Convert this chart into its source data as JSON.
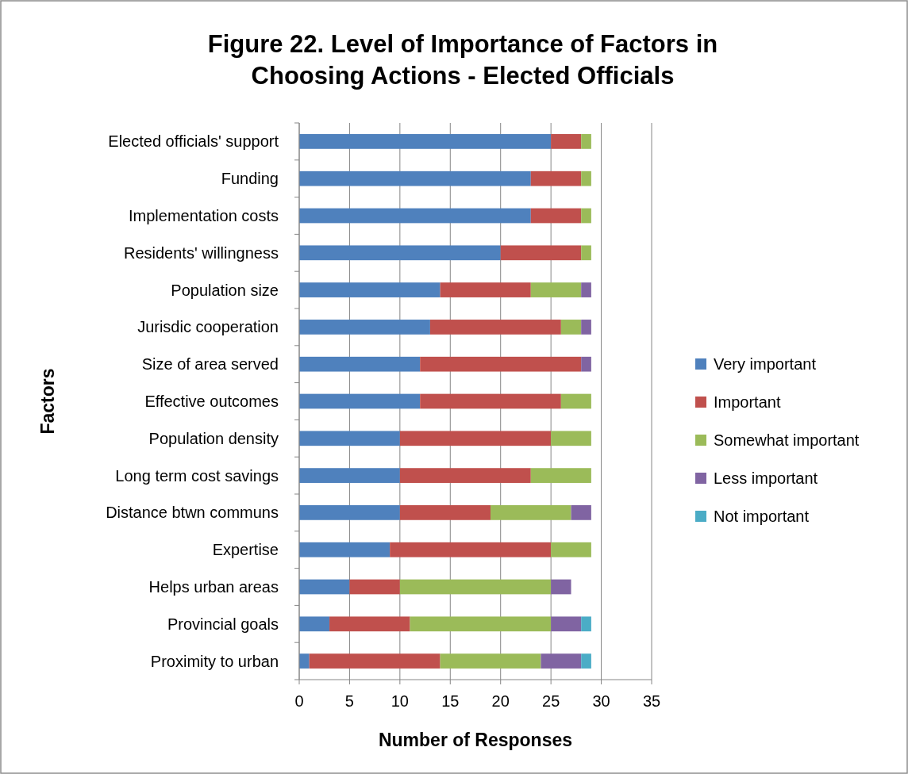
{
  "chart_data": {
    "type": "bar",
    "orientation": "horizontal",
    "stacked": true,
    "title": "Figure 22. Level of Importance of Factors in Choosing Actions - Elected Officials",
    "xlabel": "Number of Responses",
    "ylabel": "Factors",
    "categories": [
      "Elected officials' support",
      "Funding",
      "Implementation costs",
      "Residents' willingness",
      "Population size",
      "Jurisdic cooperation",
      "Size of area served",
      "Effective outcomes",
      "Population density",
      "Long term cost savings",
      "Distance btwn communs",
      "Expertise",
      "Helps urban areas",
      "Provincial goals",
      "Proximity to urban"
    ],
    "series": [
      {
        "name": "Very important",
        "color": "#4f81bd",
        "values": [
          25,
          23,
          23,
          20,
          14,
          13,
          12,
          12,
          10,
          10,
          10,
          9,
          5,
          3,
          1
        ]
      },
      {
        "name": "Important",
        "color": "#c0504d",
        "values": [
          3,
          5,
          5,
          8,
          9,
          13,
          16,
          14,
          15,
          13,
          9,
          16,
          5,
          8,
          13
        ]
      },
      {
        "name": "Somewhat important",
        "color": "#9bbb59",
        "values": [
          1,
          1,
          1,
          1,
          5,
          2,
          0,
          3,
          4,
          6,
          8,
          4,
          15,
          14,
          10
        ]
      },
      {
        "name": "Less important",
        "color": "#8064a2",
        "values": [
          0,
          0,
          0,
          0,
          1,
          1,
          1,
          0,
          0,
          0,
          2,
          0,
          2,
          3,
          4
        ]
      },
      {
        "name": "Not important",
        "color": "#4bacc6",
        "values": [
          0,
          0,
          0,
          0,
          0,
          0,
          0,
          0,
          0,
          0,
          0,
          0,
          0,
          1,
          1
        ]
      }
    ],
    "xlim": [
      0,
      35
    ],
    "xticks": [
      0,
      5,
      10,
      15,
      20,
      25,
      30,
      35
    ],
    "grid": "x",
    "legend": "right"
  }
}
